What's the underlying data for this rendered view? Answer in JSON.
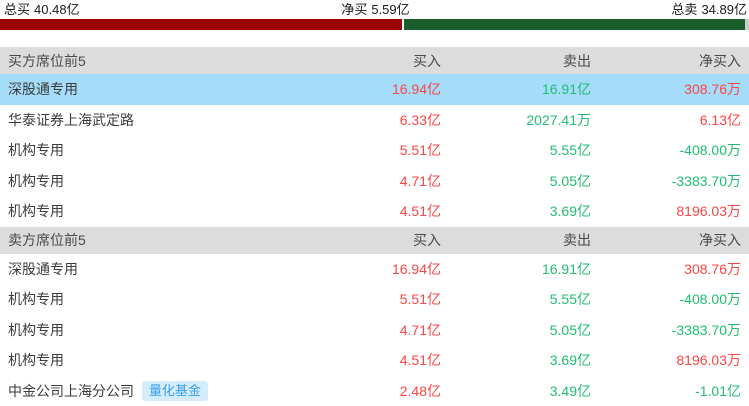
{
  "summary": {
    "total_buy": {
      "label": "总买",
      "value": "40.48亿"
    },
    "net_buy": {
      "label": "净买",
      "value": "5.59亿"
    },
    "total_sell": {
      "label": "总卖",
      "value": "34.89亿"
    },
    "bar": {
      "buy_pct": 53.7,
      "buy_color": "#9a0505",
      "sell_color": "#1a5e2b",
      "tail_color": "#cccccc"
    }
  },
  "colors": {
    "up": "#fa4646",
    "down": "#21bd73",
    "highlight_row": "#a4dcfa",
    "header_bg": "#dcdcdc",
    "badge_bg": "#d4ecfb",
    "badge_text": "#3aa0e8"
  },
  "table": {
    "sections": [
      {
        "header": {
          "title": "买方席位前5",
          "cols": [
            "买入",
            "卖出",
            "净买入"
          ]
        },
        "rows": [
          {
            "name": "深股通专用",
            "highlight": true,
            "buy": "16.94亿",
            "sell": "16.91亿",
            "net": "308.76万",
            "net_color": "up"
          },
          {
            "name": "华泰证券上海武定路",
            "highlight": false,
            "buy": "6.33亿",
            "sell": "2027.41万",
            "net": "6.13亿",
            "net_color": "up"
          },
          {
            "name": "机构专用",
            "highlight": false,
            "buy": "5.51亿",
            "sell": "5.55亿",
            "net": "-408.00万",
            "net_color": "down"
          },
          {
            "name": "机构专用",
            "highlight": false,
            "buy": "4.71亿",
            "sell": "5.05亿",
            "net": "-3383.70万",
            "net_color": "down"
          },
          {
            "name": "机构专用",
            "highlight": false,
            "buy": "4.51亿",
            "sell": "3.69亿",
            "net": "8196.03万",
            "net_color": "up"
          }
        ]
      },
      {
        "header": {
          "title": "卖方席位前5",
          "cols": [
            "买入",
            "卖出",
            "净买入"
          ]
        },
        "rows": [
          {
            "name": "深股通专用",
            "highlight": false,
            "buy": "16.94亿",
            "sell": "16.91亿",
            "net": "308.76万",
            "net_color": "up"
          },
          {
            "name": "机构专用",
            "highlight": false,
            "buy": "5.51亿",
            "sell": "5.55亿",
            "net": "-408.00万",
            "net_color": "down"
          },
          {
            "name": "机构专用",
            "highlight": false,
            "buy": "4.71亿",
            "sell": "5.05亿",
            "net": "-3383.70万",
            "net_color": "down"
          },
          {
            "name": "机构专用",
            "highlight": false,
            "buy": "4.51亿",
            "sell": "3.69亿",
            "net": "8196.03万",
            "net_color": "up"
          },
          {
            "name": "中金公司上海分公司",
            "badge": "量化基金",
            "highlight": false,
            "buy": "2.48亿",
            "sell": "3.49亿",
            "net": "-1.01亿",
            "net_color": "down"
          }
        ]
      }
    ]
  }
}
